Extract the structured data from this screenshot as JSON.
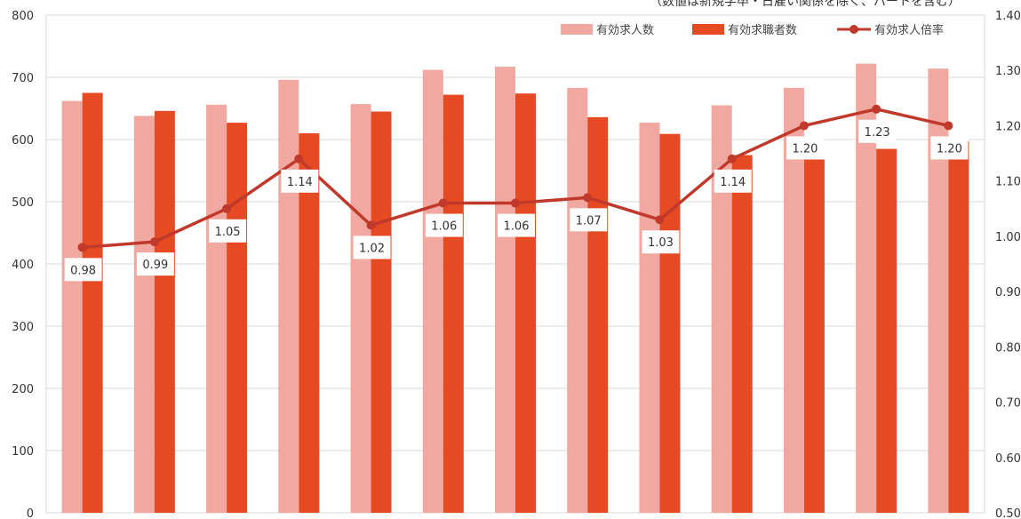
{
  "note": "（数値は新規学卒・日雇い関係を除く、パートを含む）",
  "chart_data": {
    "type": "bar",
    "title": "",
    "xlabel": "",
    "ylabel": "",
    "ylim": [
      0,
      800
    ],
    "y2lim": [
      0.5,
      1.4
    ],
    "y_ticks": [
      "0",
      "100",
      "200",
      "300",
      "400",
      "500",
      "600",
      "700",
      "800"
    ],
    "y2_ticks": [
      "0.50",
      "0.60",
      "0.70",
      "0.80",
      "0.90",
      "1.00",
      "1.10",
      "1.20",
      "1.30",
      "1.40"
    ],
    "legend_position": "top-right",
    "series": [
      {
        "name": "有効求人数",
        "kind": "bar",
        "axis": "left",
        "color": "#f0a8a0",
        "values": [
          662,
          638,
          656,
          696,
          657,
          712,
          717,
          683,
          627,
          655,
          683,
          722,
          714
        ]
      },
      {
        "name": "有効求職者数",
        "kind": "bar",
        "axis": "left",
        "color": "#e64a23",
        "values": [
          675,
          646,
          627,
          610,
          645,
          672,
          674,
          636,
          609,
          575,
          568,
          585,
          597
        ]
      },
      {
        "name": "有効求人倍率",
        "kind": "line",
        "axis": "right",
        "color": "#c0392b",
        "values": [
          0.98,
          0.99,
          1.05,
          1.14,
          1.02,
          1.06,
          1.06,
          1.07,
          1.03,
          1.14,
          1.2,
          1.23,
          1.2
        ],
        "labels": [
          "0.98",
          "0.99",
          "1.05",
          "1.14",
          "1.02",
          "1.06",
          "1.06",
          "1.07",
          "1.03",
          "1.14",
          "1.20",
          "1.23",
          "1.20"
        ]
      }
    ]
  }
}
